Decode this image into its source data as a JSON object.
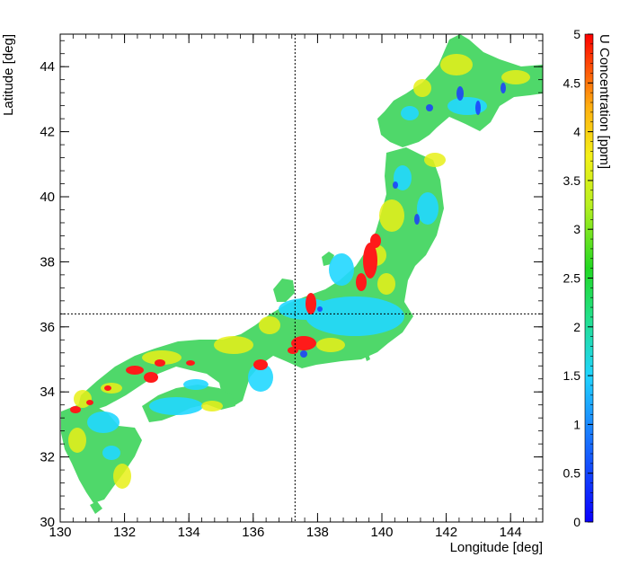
{
  "map": {
    "x_axis_label": "Longitude [deg]",
    "y_axis_label": "Latitude [deg]",
    "colorbar_label": "U Concentration [ppm]",
    "x_ticks": [
      "130",
      "132",
      "134",
      "136",
      "138",
      "140",
      "142",
      "144"
    ],
    "y_ticks": [
      "30",
      "32",
      "34",
      "36",
      "38",
      "40",
      "42",
      "44"
    ],
    "colorbar_ticks": [
      "0",
      "0.5",
      "1",
      "1.5",
      "2",
      "2.5",
      "3",
      "3.5",
      "4",
      "4.5",
      "5"
    ],
    "x_range": [
      130,
      145
    ],
    "y_range": [
      30,
      45
    ],
    "colorbar_range": [
      0,
      5
    ],
    "crosshair": {
      "longitude": 137.3,
      "latitude": 36.4
    },
    "colors": {
      "land_base": "#4fd86a",
      "low": "#1c3cff",
      "cyan": "#20d4ff",
      "green": "#33d84a",
      "yellow": "#e8f018",
      "orange": "#ffaa10",
      "high": "#ff1010"
    }
  }
}
